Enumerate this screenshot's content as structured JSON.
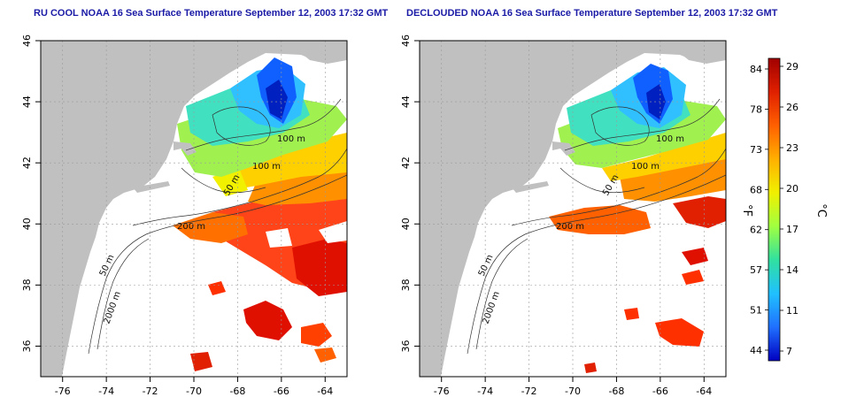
{
  "panels": [
    {
      "title": "RU COOL NOAA 16 Sea Surface Temperature September 12, 2003 17:32 GMT",
      "coverage": "partial-cloud"
    },
    {
      "title": "DECLOUDED NOAA 16 Sea Surface Temperature September 12, 2003 17:32 GMT",
      "coverage": "declouded"
    }
  ],
  "map": {
    "lon_range": [
      -77,
      -63
    ],
    "lat_range": [
      35,
      46
    ],
    "x_ticks": [
      -76,
      -74,
      -72,
      -70,
      -68,
      -66,
      -64
    ],
    "x_tick_labels": [
      "-76",
      "-74",
      "-72",
      "-70",
      "-68",
      "-66",
      "-64"
    ],
    "y_ticks": [
      36,
      38,
      40,
      42,
      44,
      46
    ],
    "y_tick_labels": [
      "36",
      "38",
      "40",
      "42",
      "44",
      "46"
    ],
    "grid": true,
    "land_color": "#c0c0c0",
    "contour_labels": [
      "100 m",
      "100 m",
      "50 m",
      "200 m",
      "50 m",
      "2000 m"
    ]
  },
  "colorbar": {
    "f_labels": [
      "84",
      "78",
      "73",
      "68",
      "62",
      "57",
      "51",
      "44"
    ],
    "c_labels": [
      "29",
      "26",
      "23",
      "20",
      "17",
      "14",
      "11",
      "7"
    ],
    "f_axis_label": "°F",
    "c_axis_label": "°C",
    "colors": [
      "#a00000",
      "#e02000",
      "#ff6000",
      "#ffb000",
      "#f0f000",
      "#a0ff40",
      "#30e0a0",
      "#20c0ff",
      "#2070ff",
      "#0000c0"
    ]
  }
}
